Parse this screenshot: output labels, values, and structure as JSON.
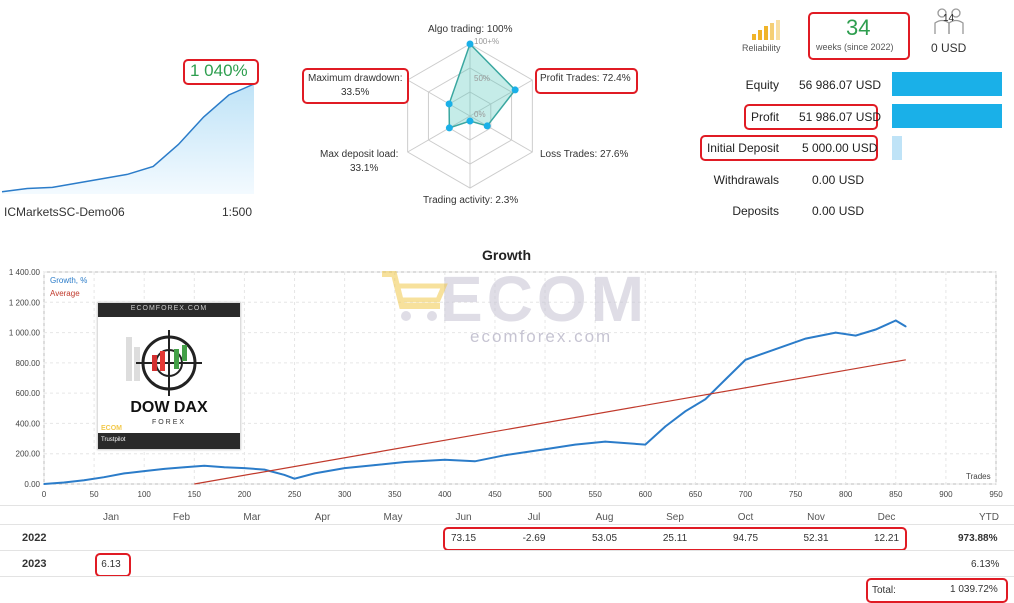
{
  "summary": {
    "gain": "1 040%",
    "account_name": "ICMarketsSC-Demo06",
    "leverage": "1:500"
  },
  "radar": {
    "algo_trading": "Algo trading: 100%",
    "profit_trades": "Profit Trades: 72.4%",
    "loss_trades": "Loss Trades: 27.6%",
    "trading_activity": "Trading activity: 2.3%",
    "max_deposit_load_label": "Max deposit load:",
    "max_deposit_load_value": "33.1%",
    "max_drawdown_label": "Maximum drawdown:",
    "max_drawdown_value": "33.5%",
    "ring_100": "100+%",
    "ring_50": "50%",
    "ring_0": "0%",
    "values": {
      "algo": 1.0,
      "profit": 0.724,
      "loss": 0.276,
      "activity": 0.023,
      "deposit_load": 0.331,
      "drawdown": 0.335
    }
  },
  "reliability": {
    "label": "Reliability",
    "weeks": "34",
    "weeks_sub": "weeks (since 2022)",
    "subscribers": "14",
    "subscribers_value": "0 USD"
  },
  "account": {
    "equity_label": "Equity",
    "equity_value": "56 986.07 USD",
    "profit_label": "Profit",
    "profit_value": "51 986.07 USD",
    "initial_label": "Initial Deposit",
    "initial_value": "5 000.00 USD",
    "withdrawals_label": "Withdrawals",
    "withdrawals_value": "0.00 USD",
    "deposits_label": "Deposits",
    "deposits_value": "0.00 USD"
  },
  "watermark": {
    "brand": "ECOM",
    "url": "ecomforex.com"
  },
  "badge": {
    "site": "ECOMFOREX.COM",
    "title": "DOW DAX",
    "subtitle": "FOREX",
    "mini_brand": "ECOM",
    "trustpilot": "Trustpilot"
  },
  "chart_data": {
    "type": "line",
    "title": "Growth",
    "legend": [
      "Growth, %",
      "Average"
    ],
    "xlabel": "Trades",
    "xlim": [
      0,
      950
    ],
    "ylim": [
      0,
      1400
    ],
    "x_ticks": [
      "0",
      "50",
      "100",
      "150",
      "200",
      "250",
      "300",
      "350",
      "400",
      "450",
      "500",
      "550",
      "600",
      "650",
      "700",
      "750",
      "800",
      "850",
      "900",
      "950"
    ],
    "y_ticks": [
      "0.00",
      "200.00",
      "400.00",
      "600.00",
      "800.00",
      "1 000.00",
      "1 200.00",
      "1 400.00"
    ],
    "series": [
      {
        "name": "Growth, %",
        "color": "#2b7cc9",
        "x": [
          0,
          20,
          40,
          60,
          80,
          100,
          120,
          140,
          160,
          180,
          200,
          220,
          240,
          250,
          270,
          300,
          330,
          360,
          400,
          430,
          460,
          500,
          530,
          560,
          600,
          620,
          640,
          660,
          680,
          700,
          730,
          760,
          790,
          810,
          830,
          850,
          860
        ],
        "y": [
          0,
          10,
          25,
          45,
          70,
          85,
          100,
          110,
          120,
          110,
          105,
          95,
          60,
          35,
          70,
          105,
          125,
          145,
          160,
          150,
          190,
          230,
          260,
          280,
          260,
          380,
          480,
          560,
          690,
          820,
          890,
          960,
          1000,
          980,
          1020,
          1080,
          1040
        ]
      },
      {
        "name": "Average",
        "color": "#c0392b",
        "x": [
          150,
          860
        ],
        "y": [
          0,
          820
        ]
      }
    ]
  },
  "sparkline": {
    "x": [
      0,
      10,
      20,
      30,
      40,
      50,
      60,
      70,
      80,
      90,
      100
    ],
    "y": [
      2,
      5,
      6,
      10,
      14,
      18,
      25,
      45,
      70,
      90,
      100
    ]
  },
  "table": {
    "months": [
      "Jan",
      "Feb",
      "Mar",
      "Apr",
      "May",
      "Jun",
      "Jul",
      "Aug",
      "Sep",
      "Oct",
      "Nov",
      "Dec"
    ],
    "ytd_label": "YTD",
    "rows": [
      {
        "year": "2022",
        "values": [
          "",
          "",
          "",
          "",
          "",
          "73.15",
          "-2.69",
          "53.05",
          "25.11",
          "94.75",
          "52.31",
          "12.21"
        ],
        "ytd": "973.88%"
      },
      {
        "year": "2023",
        "values": [
          "6.13",
          "",
          "",
          "",
          "",
          "",
          "",
          "",
          "",
          "",
          "",
          ""
        ],
        "ytd": "6.13%"
      }
    ],
    "total_label": "Total:",
    "total_value": "1 039.72%"
  },
  "colors": {
    "accent": "#1ab0e8",
    "highlight": "#e01b24",
    "green": "#2e9e4f",
    "line": "#2b7cc9",
    "avg": "#c0392b"
  }
}
